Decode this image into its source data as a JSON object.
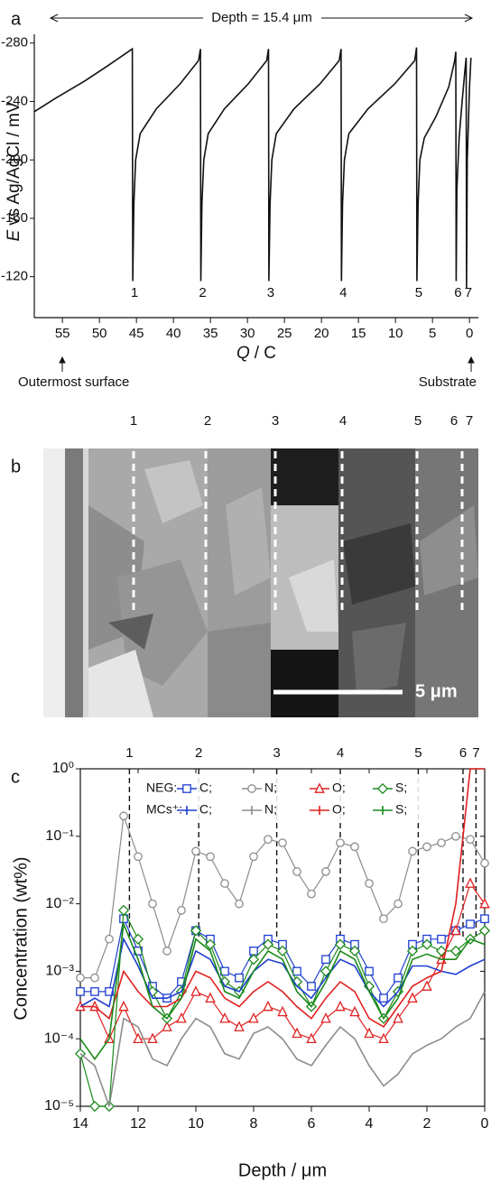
{
  "chart_data": [
    {
      "type": "line",
      "panel_label": "a",
      "annotation": "Depth = 15.4 μm",
      "xlabel_symbol": "Q",
      "xlabel": "/ C",
      "ylabel_symbol": "E",
      "ylabel": "vs Ag/AgCl / mV",
      "left_note": "Outermost surface",
      "right_note": "Substrate",
      "x": [
        58.8,
        56,
        52,
        49,
        47,
        45.55,
        45.5,
        45.35,
        45.1,
        44.5,
        42.3,
        39.1,
        36.6,
        36.35,
        36.3,
        36.15,
        35.9,
        35.3,
        33.1,
        29.9,
        27.4,
        27.15,
        27.1,
        26.95,
        26.7,
        26.1,
        23.7,
        20.2,
        17.6,
        17.35,
        17.3,
        17.15,
        16.9,
        16.3,
        13.7,
        10.1,
        7.4,
        7.15,
        7.1,
        6.95,
        6.7,
        6.1,
        4.5,
        2.8,
        2.0,
        1.85,
        1.8,
        1.7,
        1.4,
        1.0,
        0.6,
        0.45,
        0.4,
        0.3,
        0.0,
        -0.2
      ],
      "series": [
        {
          "color": "#111111",
          "values": [
            -233,
            -242,
            -254,
            -264,
            -271,
            -276,
            -117,
            -170,
            -200,
            -218,
            -235,
            -252,
            -268,
            -276,
            -117,
            -170,
            -200,
            -218,
            -235,
            -252,
            -268,
            -276,
            -117,
            -170,
            -200,
            -218,
            -235,
            -252,
            -268,
            -276,
            -117,
            -170,
            -200,
            -218,
            -235,
            -252,
            -268,
            -277,
            -117,
            -170,
            -200,
            -215,
            -230,
            -250,
            -268,
            -274,
            -117,
            -180,
            -215,
            -240,
            -262,
            -270,
            -112,
            -200,
            -250,
            -270
          ]
        }
      ],
      "peaks": [
        {
          "label": "1",
          "x": 45.5
        },
        {
          "label": "2",
          "x": 36.3
        },
        {
          "label": "3",
          "x": 27.1
        },
        {
          "label": "4",
          "x": 17.3
        },
        {
          "label": "5",
          "x": 7.1
        },
        {
          "label": "6",
          "x": 1.8
        },
        {
          "label": "7",
          "x": 0.4
        }
      ],
      "xlim": [
        58.8,
        -1.2
      ],
      "ylim": [
        -92,
        -286
      ],
      "xticks": [
        55,
        50,
        45,
        40,
        35,
        30,
        25,
        20,
        15,
        10,
        5,
        0
      ],
      "yticks": [
        -280,
        -240,
        -200,
        -160,
        -120
      ]
    },
    {
      "type": "line",
      "panel_label": "c",
      "log_y": true,
      "xlabel": "Depth / μm",
      "ylabel": "Concentration  (wt%)",
      "legend_groups": [
        "NEG:",
        "MCs⁺:"
      ],
      "x": [
        14,
        13.5,
        13,
        12.5,
        12,
        11.5,
        11,
        10.5,
        10,
        9.5,
        9,
        8.5,
        8,
        7.5,
        7,
        6.5,
        6,
        5.5,
        5,
        4.5,
        4,
        3.5,
        3,
        2.5,
        2,
        1.5,
        1,
        0.5,
        0
      ],
      "series": [
        {
          "name": "C;",
          "group": 0,
          "marker": "square",
          "color": "#1f3fd1",
          "values": [
            0.0005,
            0.0005,
            0.0005,
            0.006,
            0.002,
            0.0006,
            0.0004,
            0.0007,
            0.004,
            0.003,
            0.001,
            0.0008,
            0.002,
            0.003,
            0.0025,
            0.001,
            0.0006,
            0.0015,
            0.003,
            0.0025,
            0.001,
            0.0004,
            0.0008,
            0.0025,
            0.003,
            0.003,
            0.004,
            0.005,
            0.006
          ]
        },
        {
          "name": "N;",
          "group": 0,
          "marker": "circle",
          "color": "#8c8c8c",
          "values": [
            0.0008,
            0.0008,
            0.003,
            0.2,
            0.05,
            0.01,
            0.002,
            0.008,
            0.06,
            0.05,
            0.02,
            0.01,
            0.05,
            0.09,
            0.08,
            0.03,
            0.014,
            0.03,
            0.08,
            0.07,
            0.02,
            0.006,
            0.01,
            0.06,
            0.07,
            0.08,
            0.1,
            0.09,
            0.04
          ]
        },
        {
          "name": "O;",
          "group": 0,
          "marker": "triangle",
          "color": "#e02020",
          "values": [
            0.0003,
            0.0003,
            0.0001,
            0.0003,
            0.0001,
            0.0001,
            0.00015,
            0.0002,
            0.0005,
            0.0004,
            0.0002,
            0.00015,
            0.0002,
            0.0003,
            0.00025,
            0.00012,
            0.0001,
            0.0002,
            0.0003,
            0.00025,
            0.00012,
            0.0001,
            0.0002,
            0.0004,
            0.0006,
            0.0015,
            0.004,
            0.02,
            0.01
          ]
        },
        {
          "name": "S;",
          "group": 0,
          "marker": "diamond",
          "color": "#1a8a1a",
          "values": [
            6e-05,
            1e-05,
            1e-05,
            0.008,
            0.003,
            0.0005,
            0.0002,
            0.0005,
            0.004,
            0.0025,
            0.0007,
            0.0005,
            0.0015,
            0.0025,
            0.002,
            0.0007,
            0.0003,
            0.001,
            0.0025,
            0.002,
            0.0006,
            0.0002,
            0.0005,
            0.002,
            0.0025,
            0.002,
            0.002,
            0.003,
            0.004
          ]
        },
        {
          "name": "C;",
          "group": 1,
          "color": "#1f3fd1",
          "values": [
            0.0003,
            0.0004,
            0.0003,
            0.003,
            0.0012,
            0.0004,
            0.0004,
            0.0005,
            0.002,
            0.0015,
            0.0006,
            0.0005,
            0.001,
            0.0015,
            0.0013,
            0.0006,
            0.0004,
            0.0008,
            0.0015,
            0.0012,
            0.0005,
            0.0003,
            0.0005,
            0.0012,
            0.0012,
            0.001,
            0.0009,
            0.0012,
            0.0015
          ]
        },
        {
          "name": "N;",
          "group": 1,
          "color": "#8c8c8c",
          "values": [
            6e-05,
            4e-05,
            1e-05,
            0.0002,
            0.00015,
            5e-05,
            4e-05,
            0.0001,
            0.0002,
            0.00015,
            6e-05,
            5e-05,
            0.00012,
            0.00015,
            0.0001,
            5e-05,
            4e-05,
            8e-05,
            0.00015,
            0.0001,
            4e-05,
            2e-05,
            3e-05,
            6e-05,
            8e-05,
            0.0001,
            0.00015,
            0.0002,
            0.0005
          ]
        },
        {
          "name": "O;",
          "group": 1,
          "color": "#e02020",
          "values": [
            0.0003,
            0.0003,
            0.0002,
            0.001,
            0.0005,
            0.0003,
            0.0003,
            0.0004,
            0.001,
            0.0008,
            0.0004,
            0.0003,
            0.0005,
            0.0007,
            0.0005,
            0.0003,
            0.0002,
            0.0004,
            0.0007,
            0.0005,
            0.0002,
            0.00015,
            0.0003,
            0.0006,
            0.0008,
            0.001,
            0.01,
            1,
            1
          ]
        },
        {
          "name": "S;",
          "group": 1,
          "color": "#1a8a1a",
          "values": [
            0.0001,
            5e-05,
            0.0001,
            0.005,
            0.0015,
            0.0003,
            0.0002,
            0.0004,
            0.003,
            0.002,
            0.0005,
            0.0004,
            0.001,
            0.002,
            0.0015,
            0.0005,
            0.0003,
            0.0007,
            0.002,
            0.0015,
            0.0005,
            0.0002,
            0.0004,
            0.0015,
            0.0018,
            0.0015,
            0.0015,
            0.003,
            0.0025
          ]
        }
      ],
      "peaks": [
        {
          "label": "1",
          "x": 12.3
        },
        {
          "label": "2",
          "x": 9.9
        },
        {
          "label": "3",
          "x": 7.2
        },
        {
          "label": "4",
          "x": 5.0
        },
        {
          "label": "5",
          "x": 2.3
        },
        {
          "label": "6",
          "x": 0.75
        },
        {
          "label": "7",
          "x": 0.3
        }
      ],
      "xlim": [
        14,
        0
      ],
      "ylim": [
        1e-05,
        1
      ],
      "xticks": [
        14,
        12,
        10,
        8,
        6,
        4,
        2,
        0
      ],
      "yticks": [
        {
          "value": 1e-05,
          "label": "10⁻⁵"
        },
        {
          "value": 0.0001,
          "label": "10⁻⁴"
        },
        {
          "value": 0.001,
          "label": "10⁻³"
        },
        {
          "value": 0.01,
          "label": "10⁻²"
        },
        {
          "value": 0.1,
          "label": "10⁻¹"
        },
        {
          "value": 1,
          "label": "10⁰"
        }
      ]
    }
  ],
  "micrograph": {
    "panel_label": "b",
    "labels": [
      "1",
      "2",
      "3",
      "4",
      "5",
      "6",
      "7"
    ],
    "scale_bar": "5 μm"
  }
}
